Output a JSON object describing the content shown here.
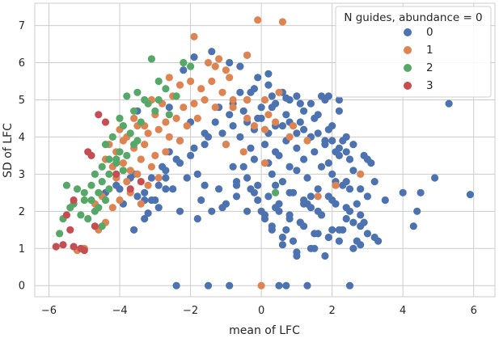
{
  "chart_data": {
    "type": "scatter",
    "title": "",
    "xlabel": "mean of LFC",
    "ylabel": "SD of LFC",
    "xlim": [
      -6.4,
      6.6
    ],
    "ylim": [
      -0.3,
      7.6
    ],
    "xticks": [
      -6,
      -4,
      -2,
      0,
      2,
      4,
      6
    ],
    "xtick_labels": [
      "−6",
      "−4",
      "−2",
      "0",
      "2",
      "4",
      "6"
    ],
    "yticks": [
      0,
      1,
      2,
      3,
      4,
      5,
      6,
      7
    ],
    "ytick_labels": [
      "0",
      "1",
      "2",
      "3",
      "4",
      "5",
      "6",
      "7"
    ],
    "grid": true,
    "legend": {
      "title": "N guides, abundance = 0",
      "placement": "top-right"
    },
    "series": [
      {
        "name": "0",
        "color": "#4C72B0",
        "x": [
          -2.4,
          -1.5,
          -0.9,
          0.5,
          0.7,
          1.3,
          2.5,
          5.3,
          5.9,
          4.5,
          4.0,
          3.5,
          3.2,
          4.4,
          4.9,
          2.8,
          3.3,
          3.0,
          2.2,
          2.6,
          4.3,
          -3.6,
          -3.3,
          -3.2,
          -2.9,
          -3.0,
          -2.3,
          -1.7,
          -1.2,
          -0.7,
          -0.2,
          -1.4,
          -0.9,
          -0.6,
          -0.1,
          0.2,
          -2.2,
          -1.9,
          -0.4,
          -3.5,
          -2.6,
          -2.0,
          -0.3,
          0.3,
          -4.0,
          -3.6,
          -2.7,
          -1.6,
          -0.8,
          0.3,
          0.6,
          0.9,
          1.2,
          1.6,
          2.0,
          2.4,
          2.8,
          3.2,
          0.1,
          0.5,
          0.8,
          1.1,
          1.4,
          1.7,
          2.1,
          2.5,
          2.9,
          -0.1,
          0.2,
          0.5,
          0.9,
          1.2,
          1.6,
          1.9,
          2.3,
          2.7,
          3.0,
          -0.7,
          -0.4,
          -0.1,
          0.3,
          0.6,
          1.0,
          1.3,
          1.7,
          2.0,
          2.4,
          2.8,
          -0.5,
          -0.2,
          0.2,
          0.5,
          0.8,
          1.2,
          1.5,
          1.9,
          2.2,
          2.6,
          3.1,
          -0.3,
          0.1,
          0.4,
          0.7,
          1.0,
          1.4,
          1.8,
          2.1,
          2.5,
          2.9,
          -1.0,
          -0.6,
          -0.2,
          0.2,
          0.6,
          1.0,
          1.4,
          1.8,
          2.2,
          2.6,
          3.0,
          -0.8,
          -0.4,
          0.0,
          0.4,
          0.8,
          1.2,
          1.6,
          2.0,
          2.4,
          -1.3,
          -0.9,
          -0.5,
          -0.1,
          0.3,
          0.7,
          1.1,
          1.5,
          1.9,
          2.3,
          -1.6,
          -1.2,
          -0.8,
          -0.4,
          0.0,
          0.4,
          0.8,
          1.2,
          1.6,
          2.0,
          2.4,
          -0.6,
          -0.2,
          0.2,
          0.6,
          1.0,
          1.4,
          1.8,
          2.2,
          0.0,
          0.4,
          0.8,
          1.2,
          1.6,
          2.0,
          2.4,
          2.8,
          0.3,
          0.7,
          1.1,
          1.5,
          1.9,
          2.3,
          2.7,
          0.6,
          1.0,
          1.4,
          1.8,
          2.2,
          2.6,
          -2.6,
          -2.3,
          -1.9,
          -1.5,
          -1.1,
          -2.8,
          -2.4,
          -2.0,
          -1.6,
          -3.1,
          -2.7,
          -2.3,
          -1.8,
          -3.3,
          -2.9,
          -2.5,
          -2.1,
          -3.9,
          -3.5,
          -3.1,
          -2.7,
          -4.4,
          -4.1,
          -3.7,
          -3.3,
          -0.4,
          0.1,
          0.4,
          0.8,
          1.3,
          1.7,
          2.1,
          2.5,
          -1.1,
          -0.7,
          -0.3,
          1.0,
          1.5,
          0.7,
          1.1,
          1.7,
          1.9,
          2.2,
          1.4,
          -1.8,
          -1.4,
          -1.0
        ],
        "y": [
          0.0,
          0.0,
          0.0,
          0.0,
          0.0,
          0.0,
          0.0,
          4.9,
          2.45,
          2.5,
          2.5,
          2.3,
          2.8,
          2.0,
          2.9,
          1.1,
          1.2,
          1.4,
          1.5,
          1.7,
          1.6,
          1.5,
          1.8,
          1.95,
          2.1,
          2.3,
          2.0,
          2.3,
          2.6,
          2.7,
          2.5,
          6.3,
          6.0,
          5.9,
          5.6,
          5.7,
          5.8,
          6.15,
          6.2,
          4.7,
          4.8,
          4.4,
          5.2,
          5.1,
          2.6,
          3.0,
          2.9,
          2.7,
          3.2,
          1.5,
          1.3,
          1.2,
          1.6,
          1.4,
          1.5,
          1.8,
          1.6,
          1.3,
          1.9,
          2.0,
          1.8,
          1.7,
          2.1,
          1.9,
          2.2,
          2.0,
          1.7,
          2.3,
          2.4,
          2.2,
          2.5,
          2.3,
          2.6,
          2.4,
          2.7,
          2.2,
          2.4,
          2.8,
          2.9,
          2.7,
          3.0,
          2.8,
          3.1,
          2.9,
          3.2,
          3.0,
          2.8,
          2.6,
          3.2,
          3.4,
          3.3,
          3.5,
          3.2,
          3.4,
          3.6,
          3.3,
          3.5,
          3.1,
          3.3,
          3.7,
          3.8,
          3.6,
          3.9,
          3.7,
          4.0,
          3.8,
          3.6,
          3.4,
          3.5,
          3.8,
          4.0,
          4.2,
          4.1,
          4.3,
          4.1,
          4.0,
          3.9,
          3.7,
          3.8,
          3.4,
          4.3,
          4.4,
          4.5,
          4.3,
          4.4,
          4.2,
          4.1,
          3.9,
          3.6,
          4.4,
          4.6,
          4.7,
          4.5,
          4.8,
          4.6,
          4.4,
          4.5,
          4.2,
          3.9,
          4.1,
          4.8,
          4.9,
          5.0,
          4.8,
          4.9,
          5.0,
          4.7,
          4.6,
          4.3,
          4.0,
          5.2,
          5.3,
          5.4,
          5.2,
          5.1,
          4.9,
          5.0,
          4.7,
          2.0,
          2.1,
          1.9,
          2.2,
          2.0,
          2.3,
          2.1,
          1.9,
          1.6,
          1.5,
          1.7,
          1.4,
          1.3,
          1.5,
          1.2,
          1.1,
          0.9,
          1.0,
          0.8,
          1.2,
          1.0,
          3.6,
          3.9,
          3.7,
          4.0,
          4.1,
          3.2,
          3.4,
          3.5,
          3.8,
          2.9,
          3.1,
          3.3,
          3.0,
          2.5,
          2.7,
          2.6,
          2.9,
          2.2,
          2.4,
          2.3,
          2.6,
          2.5,
          2.7,
          2.9,
          2.3,
          2.0,
          1.8,
          2.7,
          2.5,
          2.2,
          1.9,
          2.8,
          2.6,
          2.1,
          2.4,
          2.6,
          0.8,
          1.0,
          5.05,
          4.9,
          5.1,
          5.1,
          5.0,
          2.4,
          1.8,
          2.0,
          2.2
        ]
      },
      {
        "name": "1",
        "color": "#DD8452",
        "x": [
          -0.1,
          0.6,
          -1.9,
          -1.5,
          -1.3,
          -1.2,
          -1.0,
          -0.9,
          -0.4,
          0.1,
          0.5,
          -2.6,
          -2.3,
          -2.0,
          -1.7,
          -1.4,
          -1.1,
          -0.8,
          -3.1,
          -2.8,
          -2.5,
          -2.2,
          -1.9,
          -1.6,
          -1.3,
          -3.6,
          -3.3,
          -3.0,
          -2.7,
          -2.4,
          -2.1,
          -1.8,
          -4.0,
          -3.8,
          -3.5,
          -3.2,
          -2.9,
          -2.6,
          -2.3,
          -4.3,
          -4.1,
          -3.9,
          -3.6,
          -3.3,
          -3.0,
          -2.7,
          -4.4,
          -4.2,
          -3.9,
          -3.7,
          -3.4,
          -3.1,
          -4.1,
          -3.8,
          -3.5,
          -3.2,
          -2.9,
          -4.7,
          -4.5,
          -4.2,
          -4.0,
          -3.7,
          -3.4,
          -5.0,
          -5.2,
          -4.6,
          -4.4,
          -0.4,
          -0.2,
          0.1,
          0.4,
          0.8,
          1.3,
          1.6,
          2.1,
          2.8,
          -0.8,
          -0.4,
          0.2,
          0.9,
          -1.0,
          -0.5,
          0.1,
          0.0
        ],
        "y": [
          7.15,
          7.1,
          6.7,
          6.0,
          5.9,
          6.1,
          5.8,
          5.6,
          6.2,
          5.0,
          5.2,
          5.6,
          5.4,
          5.5,
          5.3,
          5.5,
          5.2,
          5.0,
          5.0,
          4.9,
          5.1,
          4.8,
          4.9,
          5.0,
          4.8,
          4.5,
          4.3,
          4.6,
          4.4,
          4.5,
          4.3,
          4.5,
          4.2,
          4.0,
          4.3,
          4.1,
          4.2,
          4.0,
          3.9,
          3.8,
          3.6,
          3.9,
          3.7,
          3.8,
          3.5,
          3.6,
          3.4,
          3.2,
          3.3,
          3.1,
          3.4,
          3.2,
          2.9,
          2.8,
          3.0,
          2.7,
          2.9,
          2.2,
          2.4,
          2.1,
          2.3,
          2.5,
          2.2,
          1.0,
          0.95,
          1.5,
          1.7,
          4.5,
          4.3,
          4.2,
          4.4,
          4.0,
          3.9,
          2.4,
          2.7,
          3.0,
          4.8,
          5.0,
          4.6,
          4.3,
          3.8,
          3.6,
          3.3,
          0.0
        ]
      },
      {
        "name": "2",
        "color": "#55A868",
        "x": [
          -3.1,
          -3.8,
          -3.3,
          -3.5,
          -3.2,
          -2.9,
          -2.7,
          -2.4,
          -2.6,
          -3.0,
          -4.0,
          -3.6,
          -3.4,
          -3.9,
          -3.7,
          -3.5,
          -4.4,
          -4.2,
          -4.0,
          -3.8,
          -3.6,
          -4.3,
          -4.1,
          -3.9,
          -4.5,
          -4.3,
          -4.1,
          -4.7,
          -4.5,
          -4.3,
          -4.8,
          -4.6,
          -4.4,
          -5.0,
          -4.8,
          -4.6,
          -5.2,
          -5.0,
          -4.7,
          -5.4,
          -5.1,
          -4.9,
          -5.5,
          -5.3,
          -5.6,
          -5.7,
          -4.5,
          0.4,
          -2.2,
          -2.0,
          -2.9
        ],
        "y": [
          6.1,
          5.1,
          5.0,
          5.2,
          4.9,
          5.0,
          5.3,
          5.1,
          4.6,
          4.7,
          4.5,
          4.7,
          4.4,
          4.3,
          4.1,
          3.9,
          3.8,
          4.0,
          3.6,
          3.5,
          3.8,
          3.4,
          3.3,
          3.1,
          3.2,
          3.0,
          3.4,
          3.0,
          2.8,
          2.6,
          2.7,
          2.5,
          2.3,
          2.5,
          2.3,
          2.1,
          2.6,
          2.3,
          2.0,
          2.1,
          1.9,
          1.8,
          2.7,
          2.2,
          1.8,
          1.4,
          1.6,
          2.5,
          6.0,
          5.9,
          5.5
        ],
        "y_note": ""
      },
      {
        "name": "3",
        "color": "#C44E52",
        "x": [
          -4.6,
          -4.4,
          -4.9,
          -4.8,
          -4.1,
          -3.7,
          -3.4,
          -5.3,
          -5.5,
          -5.8,
          -5.6,
          -5.3,
          -5.1,
          -5.0,
          -4.7,
          -5.4
        ],
        "y": [
          4.6,
          4.4,
          3.6,
          3.5,
          3.0,
          2.6,
          2.8,
          2.3,
          1.9,
          1.05,
          1.1,
          1.05,
          1.0,
          0.95,
          1.6,
          1.5
        ]
      }
    ]
  }
}
